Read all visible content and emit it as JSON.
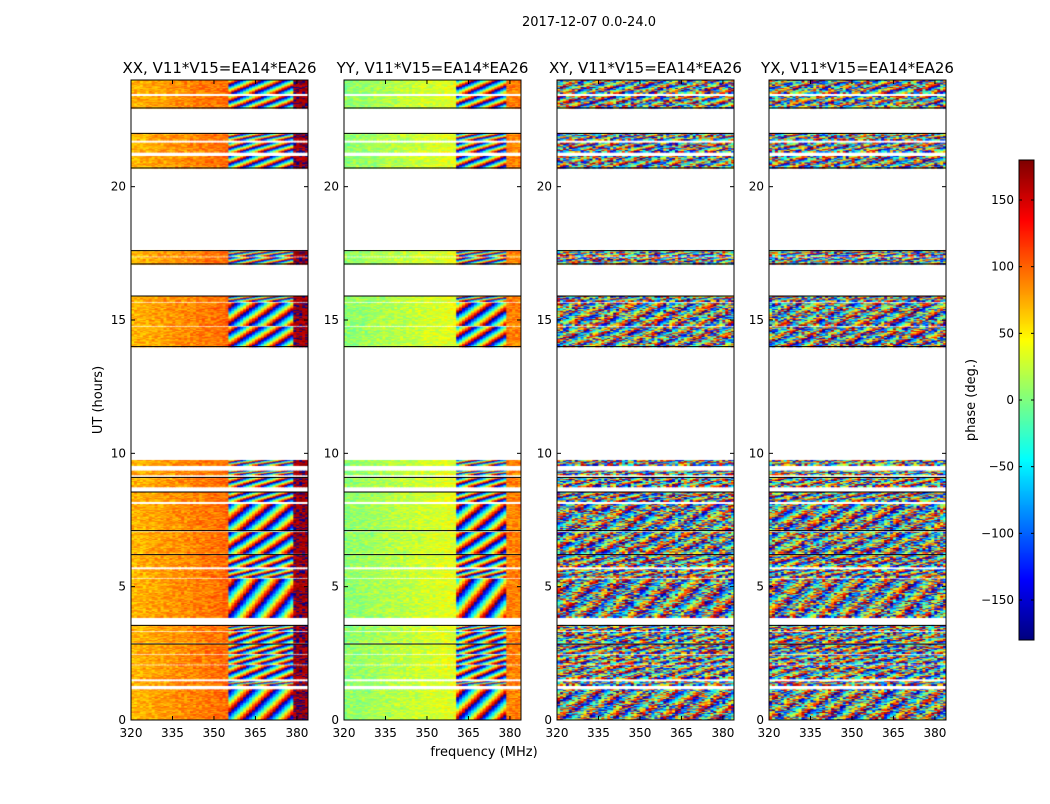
{
  "chart_data": {
    "type": "heatmap",
    "suptitle": "2017-12-07 0.0-24.0",
    "xlabel": "frequency (MHz)",
    "ylabel": "UT (hours)",
    "xlim": [
      320,
      384
    ],
    "ylim": [
      0,
      24
    ],
    "xticks": [
      320,
      335,
      350,
      365,
      380
    ],
    "yticks": [
      0,
      5,
      10,
      15,
      20
    ],
    "colorbar": {
      "label": "phase (deg.)",
      "range": [
        -180,
        180
      ],
      "ticks": [
        150,
        100,
        50,
        0,
        -50,
        -100,
        -150
      ],
      "tick_labels": [
        "150",
        "100",
        "50",
        "0",
        "−50",
        "−100",
        "−150"
      ],
      "colormap": [
        "#00007f",
        "#0000ff",
        "#007fff",
        "#00ffff",
        "#7fff7f",
        "#ffff00",
        "#ff7f00",
        "#ff0000",
        "#7f0000"
      ]
    },
    "panels": [
      {
        "id": "xx",
        "title": "XX, V11*V15=EA14*EA26",
        "smooth_until": [
          355,
          380
        ],
        "base_phase": 70,
        "edge_phase": 170
      },
      {
        "id": "yy",
        "title": "YY, V11*V15=EA14*EA26",
        "smooth_until": [
          361,
          361
        ],
        "base_phase": 5,
        "edge_phase": 90
      },
      {
        "id": "xy",
        "title": "XY, V11*V15=EA14*EA26",
        "smooth_until": [
          320,
          320
        ],
        "base_phase": 0,
        "edge_phase": 0
      },
      {
        "id": "yx",
        "title": "YX, V11*V15=EA14*EA26",
        "smooth_until": [
          320,
          320
        ],
        "base_phase": 0,
        "edge_phase": 0
      }
    ],
    "data_bands_hours": [
      [
        0.0,
        1.15
      ],
      [
        1.3,
        1.45
      ],
      [
        1.55,
        2.05
      ],
      [
        2.1,
        2.45
      ],
      [
        2.5,
        2.85
      ],
      [
        2.9,
        3.3
      ],
      [
        3.35,
        3.55
      ],
      [
        3.85,
        5.3
      ],
      [
        5.35,
        5.65
      ],
      [
        5.75,
        6.2
      ],
      [
        6.25,
        7.05
      ],
      [
        7.1,
        8.1
      ],
      [
        8.2,
        8.55
      ],
      [
        8.75,
        9.1
      ],
      [
        9.2,
        9.35
      ],
      [
        9.55,
        9.75
      ],
      [
        14.0,
        14.75
      ],
      [
        14.8,
        15.65
      ],
      [
        15.7,
        15.9
      ],
      [
        17.1,
        17.35
      ],
      [
        17.4,
        17.6
      ],
      [
        20.7,
        21.15
      ],
      [
        21.3,
        21.65
      ],
      [
        21.75,
        22.0
      ],
      [
        22.95,
        23.4
      ],
      [
        23.5,
        24.0
      ]
    ]
  }
}
